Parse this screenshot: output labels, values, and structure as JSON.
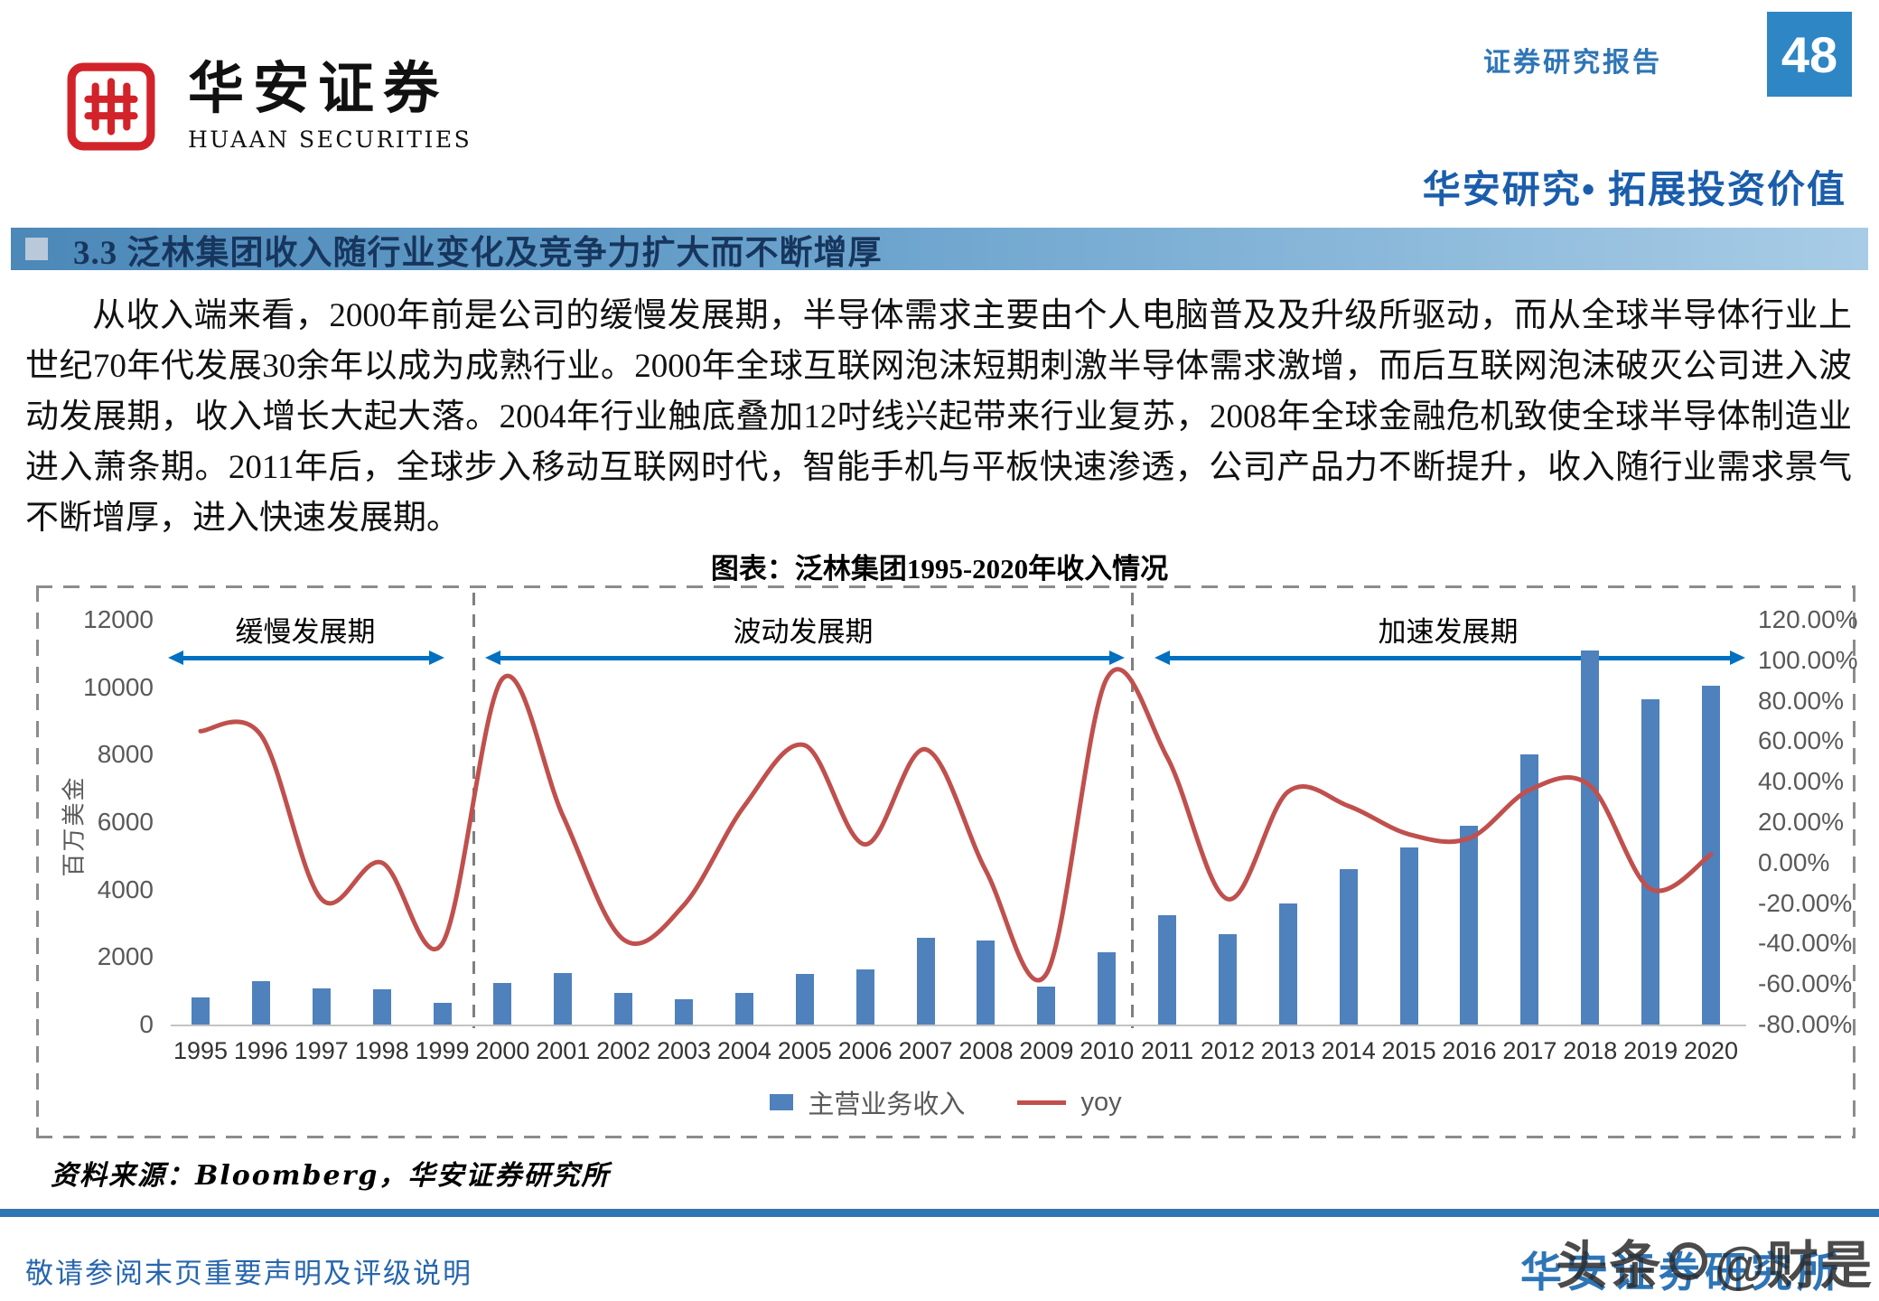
{
  "header": {
    "logo_title": "华安证券",
    "logo_subtitle": "HUAAN SECURITIES",
    "report_type": "证券研究报告",
    "page_number": "48",
    "slogan": "华安研究• 拓展投资价值"
  },
  "section": {
    "title": "3.3 泛林集团收入随行业变化及竞争力扩大而不断增厚"
  },
  "body": {
    "paragraph": "从收入端来看，2000年前是公司的缓慢发展期，半导体需求主要由个人电脑普及及升级所驱动，而从全球半导体行业上世纪70年代发展30余年以成为成熟行业。2000年全球互联网泡沫短期刺激半导体需求激增，而后互联网泡沫破灭公司进入波动发展期，收入增长大起大落。2004年行业触底叠加12吋线兴起带来行业复苏，2008年全球金融危机致使全球半导体制造业进入萧条期。2011年后，全球步入移动互联网时代，智能手机与平板快速渗透，公司产品力不断提升，收入随行业需求景气不断增厚，进入快速发展期。"
  },
  "chart": {
    "title": "图表：泛林集团1995-2020年收入情况",
    "y_left_axis_label": "百万美金",
    "left_ticks": [
      "12000",
      "10000",
      "8000",
      "6000",
      "4000",
      "2000",
      "0"
    ],
    "right_ticks": [
      "120.00%",
      "100.00%",
      "80.00%",
      "60.00%",
      "40.00%",
      "20.00%",
      "0.00%",
      "-20.00%",
      "-40.00%",
      "-60.00%",
      "-80.00%"
    ],
    "periods": [
      {
        "label": "缓慢发展期"
      },
      {
        "label": "波动发展期"
      },
      {
        "label": "加速发展期"
      }
    ],
    "legend": [
      {
        "label": "主营业务收入",
        "color": "#4f81bd"
      },
      {
        "label": "yoy",
        "color": "#c0504d"
      }
    ]
  },
  "chart_data": {
    "type": "bar",
    "subtype": "combo-bar-line",
    "title": "图表：泛林集团1995-2020年收入情况",
    "categories": [
      1995,
      1996,
      1997,
      1998,
      1999,
      2000,
      2001,
      2002,
      2003,
      2004,
      2005,
      2006,
      2007,
      2008,
      2009,
      2010,
      2011,
      2012,
      2013,
      2014,
      2015,
      2016,
      2017,
      2018,
      2019,
      2020
    ],
    "series": [
      {
        "name": "主营业务收入",
        "type": "bar",
        "axis": "left",
        "unit": "百万美金",
        "values": [
          810,
          1280,
          1070,
          1050,
          650,
          1240,
          1520,
          940,
          740,
          950,
          1500,
          1640,
          2570,
          2480,
          1120,
          2130,
          3240,
          2670,
          3600,
          4610,
          5260,
          5890,
          8010,
          11080,
          9650,
          10050
        ]
      },
      {
        "name": "yoy",
        "type": "line",
        "axis": "right",
        "unit": "%",
        "values": [
          65,
          63,
          -18,
          0,
          -40,
          91,
          23,
          -38,
          -21,
          28,
          58,
          9,
          56,
          -4,
          -55,
          91,
          52,
          -18,
          35,
          28,
          14,
          12,
          36,
          38,
          -13,
          4
        ]
      }
    ],
    "left_axis": {
      "label": "百万美金",
      "min": 0,
      "max": 12000,
      "step": 2000
    },
    "right_axis": {
      "min": -80,
      "max": 120,
      "step": 20,
      "format": "percent"
    },
    "annotations": [
      "缓慢发展期",
      "波动发展期",
      "加速发展期"
    ],
    "legend_position": "bottom",
    "grid": false
  },
  "source": "资料来源：Bloomberg，华安证券研究所",
  "footer": {
    "disclaimer": "敬请参阅末页重要声明及评级说明",
    "institute": "华安证券研究所",
    "watermark_prefix": "头条",
    "watermark_suffix": "@财是"
  },
  "colors": {
    "bar": "#4f81bd",
    "line": "#c0504d",
    "arrow": "#0070c0",
    "accent_blue": "#2e75b6",
    "logo_red": "#d2232a"
  }
}
